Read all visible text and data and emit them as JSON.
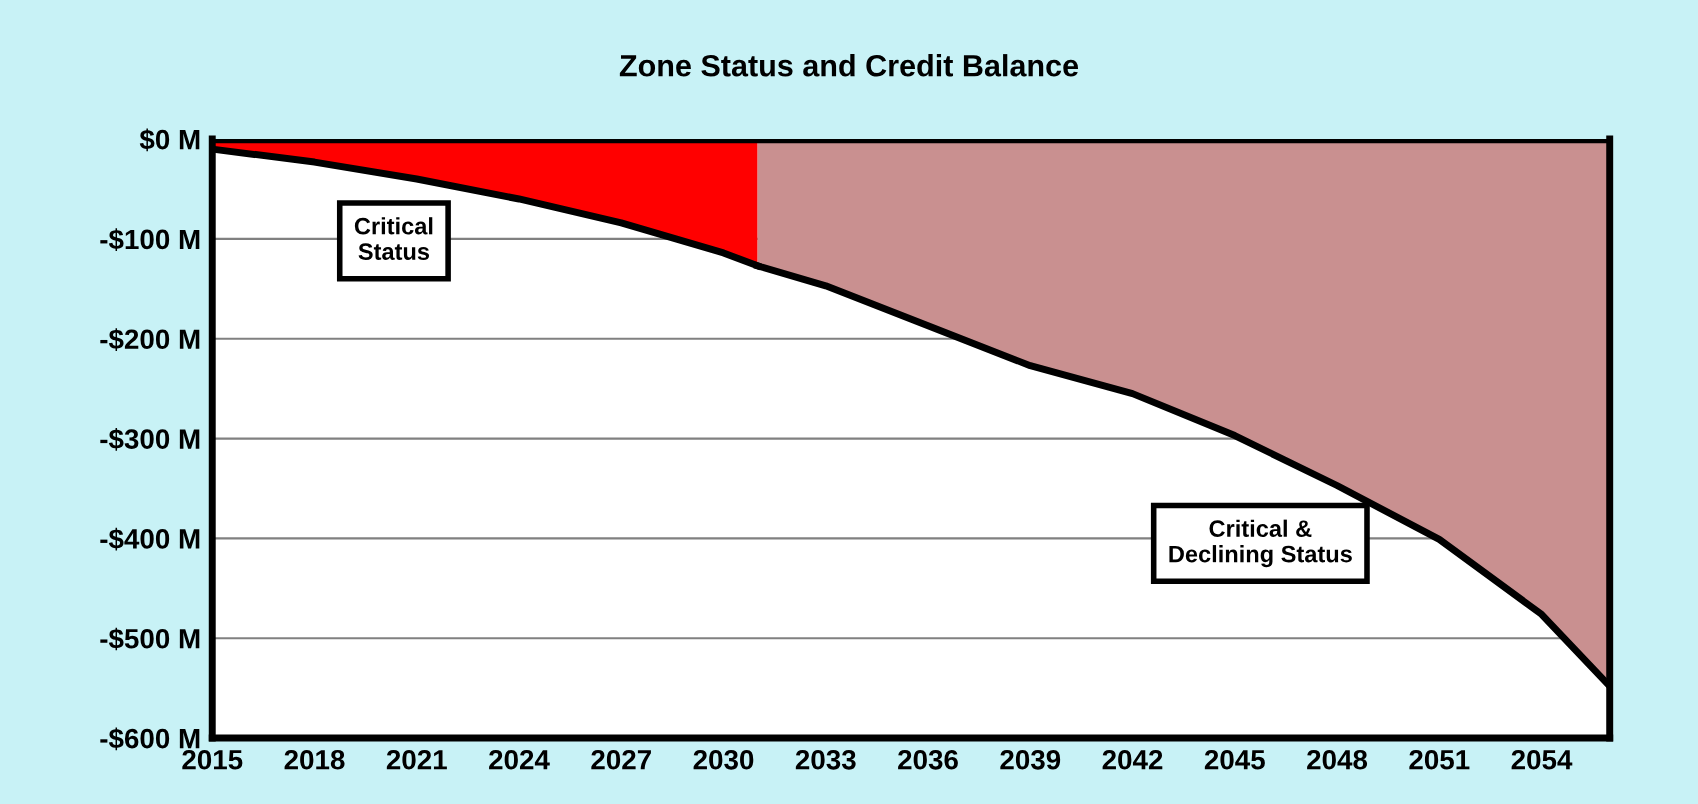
{
  "chart_data": {
    "type": "area",
    "title": "Zone Status and Credit Balance",
    "series": [
      {
        "color": "#ff0000",
        "x": [
          2015,
          2018,
          2021,
          2024,
          2027,
          2030,
          2031
        ],
        "values": [
          -10,
          -23,
          -40,
          -60,
          -84,
          -114,
          -127
        ]
      },
      {
        "color": "#c99090",
        "x": [
          2031,
          2033,
          2036,
          2039,
          2042,
          2045,
          2048,
          2051,
          2054,
          2056
        ],
        "values": [
          -127,
          -147,
          -187,
          -227,
          -255,
          -297,
          -347,
          -401,
          -476,
          -548
        ]
      }
    ],
    "xlim": [
      2015,
      2056
    ],
    "xticks": [
      2015,
      2018,
      2021,
      2024,
      2027,
      2030,
      2033,
      2036,
      2039,
      2042,
      2045,
      2048,
      2051,
      2054
    ],
    "ylim": [
      -600,
      0
    ],
    "yticks": [
      {
        "value": 0,
        "label": "$0 M"
      },
      {
        "value": -100,
        "label": "-$100 M"
      },
      {
        "value": -200,
        "label": "-$200 M"
      },
      {
        "value": -300,
        "label": "-$300 M"
      },
      {
        "value": -400,
        "label": "-$400 M"
      },
      {
        "value": -500,
        "label": "-$500 M"
      },
      {
        "value": -600,
        "label": "-$600 M"
      }
    ],
    "grid": "y",
    "annotations": [
      "Critical\nStatus",
      "Critical &\nDeclining Status"
    ]
  }
}
